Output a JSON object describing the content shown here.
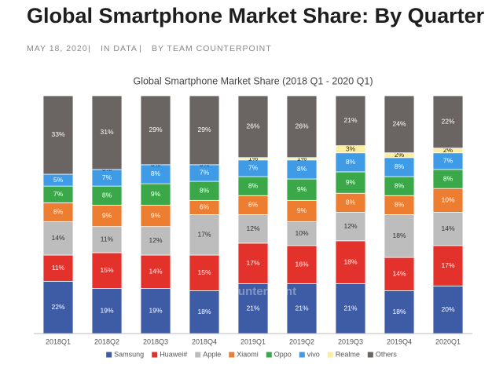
{
  "header": {
    "title": "Global Smartphone Market Share: By Quarter",
    "date": "MAY 18, 2020",
    "section": "IN DATA",
    "author": "BY TEAM COUNTERPOINT"
  },
  "chart_data": {
    "type": "stacked_bar",
    "title": "Global Smartphone Market Share (2018 Q1 - 2020 Q1)",
    "watermark": "Counterpoint",
    "categories": [
      "2018Q1",
      "2018Q2",
      "2018Q3",
      "2018Q4",
      "2019Q1",
      "2019Q2",
      "2019Q3",
      "2019Q4",
      "2020Q1"
    ],
    "series": [
      {
        "name": "Samsung",
        "color": "#3e5ca6",
        "values": [
          22,
          19,
          19,
          18,
          21,
          21,
          21,
          18,
          20
        ],
        "value_labels": [
          "22%",
          "19%",
          "19%",
          "18%",
          "21%",
          "21%",
          "21%",
          "18%",
          "20%"
        ]
      },
      {
        "name": "Huawei#",
        "color": "#e3312b",
        "values": [
          11,
          15,
          14,
          15,
          17,
          16,
          18,
          14,
          17
        ],
        "value_labels": [
          "11%",
          "15%",
          "14%",
          "15%",
          "17%",
          "16%",
          "18%",
          "14%",
          "17%"
        ]
      },
      {
        "name": "Apple",
        "color": "#bdbdbd",
        "values": [
          14,
          11,
          12,
          17,
          12,
          10,
          12,
          18,
          14
        ],
        "value_labels": [
          "14%",
          "11%",
          "12%",
          "17%",
          "12%",
          "10%",
          "12%",
          "18%",
          "14%"
        ]
      },
      {
        "name": "Xiaomi",
        "color": "#ed7d31",
        "values": [
          8,
          9,
          9,
          6,
          8,
          9,
          8,
          8,
          10
        ],
        "value_labels": [
          "8%",
          "9%",
          "9%",
          "6%",
          "8%",
          "9%",
          "8%",
          "8%",
          "10%"
        ]
      },
      {
        "name": "Oppo",
        "color": "#3aa849",
        "values": [
          7,
          8,
          9,
          8,
          8,
          9,
          9,
          8,
          8
        ],
        "value_labels": [
          "7%",
          "8%",
          "9%",
          "8%",
          "8%",
          "9%",
          "9%",
          "8%",
          "8%"
        ]
      },
      {
        "name": "vivo",
        "color": "#3f9be6",
        "values": [
          5,
          7,
          8,
          7,
          7,
          8,
          8,
          8,
          7
        ],
        "value_labels": [
          "5%",
          "7%",
          "8%",
          "7%",
          "7%",
          "8%",
          "8%",
          "8%",
          "7%"
        ]
      },
      {
        "name": "Realme",
        "color": "#fbeea0",
        "values": [
          null,
          0,
          0,
          0,
          1,
          1,
          3,
          2,
          2
        ],
        "value_labels": [
          null,
          "0%",
          "0%",
          "0%",
          "1%",
          "1%",
          "3%",
          "2%",
          "2%"
        ]
      },
      {
        "name": "Others",
        "color": "#6a6462",
        "values": [
          33,
          31,
          29,
          29,
          26,
          26,
          21,
          24,
          22
        ],
        "value_labels": [
          "33%",
          "31%",
          "29%",
          "29%",
          "26%",
          "26%",
          "21%",
          "24%",
          "22%"
        ]
      }
    ]
  }
}
